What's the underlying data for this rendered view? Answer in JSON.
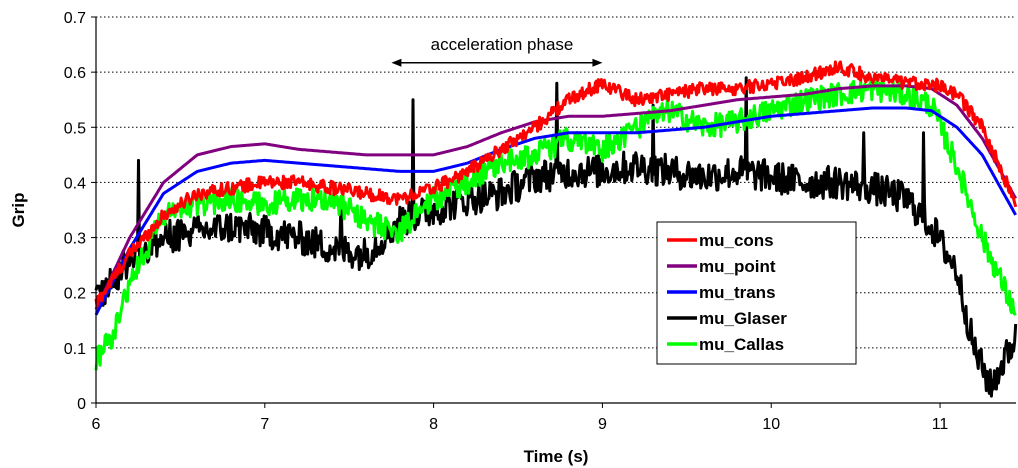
{
  "chart_data": {
    "type": "line",
    "xlabel": "Time (s)",
    "ylabel": "Grip",
    "xlim": [
      6,
      11.45
    ],
    "ylim": [
      0,
      0.7
    ],
    "xticks": [
      "6",
      "7",
      "8",
      "9",
      "10",
      "11"
    ],
    "yticks": [
      "0",
      "0.1",
      "0.2",
      "0.3",
      "0.4",
      "0.5",
      "0.6",
      "0.7"
    ],
    "grid": "horizontal dotted",
    "legend_position": "right",
    "annotation": {
      "text": "acceleration phase",
      "x_start": 7.75,
      "x_end": 9.0,
      "y": 0.617
    },
    "series": [
      {
        "name": "mu_cons",
        "color": "#ff0000",
        "noise": 0.012,
        "x": [
          6.0,
          6.2,
          6.4,
          6.6,
          6.8,
          7.0,
          7.2,
          7.4,
          7.6,
          7.8,
          8.0,
          8.2,
          8.4,
          8.6,
          8.8,
          9.0,
          9.2,
          9.4,
          9.6,
          9.8,
          10.0,
          10.2,
          10.4,
          10.6,
          10.8,
          10.95,
          11.1,
          11.25,
          11.45
        ],
        "y": [
          0.18,
          0.27,
          0.34,
          0.38,
          0.39,
          0.4,
          0.4,
          0.39,
          0.38,
          0.37,
          0.39,
          0.42,
          0.46,
          0.5,
          0.55,
          0.58,
          0.55,
          0.56,
          0.57,
          0.57,
          0.58,
          0.59,
          0.61,
          0.59,
          0.58,
          0.58,
          0.56,
          0.5,
          0.36
        ]
      },
      {
        "name": "mu_point",
        "color": "#800080",
        "noise": 0.0,
        "x": [
          6.0,
          6.2,
          6.4,
          6.6,
          6.8,
          7.0,
          7.2,
          7.4,
          7.6,
          7.8,
          8.0,
          8.2,
          8.4,
          8.6,
          8.8,
          9.0,
          9.2,
          9.4,
          9.6,
          9.8,
          10.0,
          10.2,
          10.4,
          10.6,
          10.8,
          10.95,
          11.1,
          11.25,
          11.45
        ],
        "y": [
          0.17,
          0.3,
          0.4,
          0.45,
          0.465,
          0.47,
          0.46,
          0.455,
          0.45,
          0.45,
          0.45,
          0.465,
          0.49,
          0.51,
          0.52,
          0.52,
          0.525,
          0.53,
          0.54,
          0.55,
          0.555,
          0.56,
          0.57,
          0.575,
          0.575,
          0.57,
          0.54,
          0.48,
          0.37
        ]
      },
      {
        "name": "mu_trans",
        "color": "#0000ff",
        "noise": 0.0,
        "x": [
          6.0,
          6.2,
          6.4,
          6.6,
          6.8,
          7.0,
          7.2,
          7.4,
          7.6,
          7.8,
          8.0,
          8.2,
          8.4,
          8.6,
          8.8,
          9.0,
          9.2,
          9.4,
          9.6,
          9.8,
          10.0,
          10.2,
          10.4,
          10.6,
          10.8,
          10.95,
          11.1,
          11.25,
          11.45
        ],
        "y": [
          0.16,
          0.28,
          0.38,
          0.42,
          0.435,
          0.44,
          0.435,
          0.43,
          0.425,
          0.42,
          0.42,
          0.435,
          0.46,
          0.48,
          0.49,
          0.49,
          0.49,
          0.495,
          0.5,
          0.51,
          0.52,
          0.525,
          0.53,
          0.535,
          0.535,
          0.53,
          0.5,
          0.45,
          0.34
        ]
      },
      {
        "name": "mu_Glaser",
        "color": "#000000",
        "noise": 0.03,
        "spikes": [
          [
            6.25,
            0.44
          ],
          [
            7.45,
            0.37
          ],
          [
            7.88,
            0.55
          ],
          [
            8.73,
            0.58
          ],
          [
            9.3,
            0.54
          ],
          [
            9.85,
            0.59
          ],
          [
            10.55,
            0.49
          ],
          [
            10.9,
            0.49
          ]
        ],
        "x": [
          6.0,
          6.2,
          6.4,
          6.6,
          6.8,
          7.0,
          7.2,
          7.4,
          7.6,
          7.8,
          8.0,
          8.2,
          8.4,
          8.6,
          8.8,
          9.0,
          9.2,
          9.4,
          9.6,
          9.8,
          10.0,
          10.2,
          10.4,
          10.6,
          10.8,
          10.95,
          11.1,
          11.2,
          11.3,
          11.45
        ],
        "y": [
          0.19,
          0.26,
          0.3,
          0.31,
          0.32,
          0.31,
          0.3,
          0.28,
          0.27,
          0.33,
          0.35,
          0.37,
          0.38,
          0.41,
          0.42,
          0.42,
          0.43,
          0.42,
          0.41,
          0.42,
          0.41,
          0.4,
          0.4,
          0.39,
          0.37,
          0.32,
          0.24,
          0.1,
          0.03,
          0.12
        ]
      },
      {
        "name": "mu_Callas",
        "color": "#00ff00",
        "noise": 0.022,
        "x": [
          6.0,
          6.1,
          6.2,
          6.4,
          6.6,
          6.8,
          7.0,
          7.2,
          7.4,
          7.6,
          7.8,
          8.0,
          8.2,
          8.4,
          8.6,
          8.8,
          9.0,
          9.2,
          9.4,
          9.6,
          9.8,
          10.0,
          10.2,
          10.4,
          10.6,
          10.8,
          10.95,
          11.1,
          11.25,
          11.45
        ],
        "y": [
          0.08,
          0.12,
          0.22,
          0.34,
          0.36,
          0.37,
          0.36,
          0.37,
          0.37,
          0.33,
          0.31,
          0.37,
          0.4,
          0.44,
          0.45,
          0.48,
          0.46,
          0.5,
          0.53,
          0.5,
          0.51,
          0.53,
          0.55,
          0.56,
          0.57,
          0.56,
          0.54,
          0.43,
          0.3,
          0.16
        ]
      }
    ]
  }
}
